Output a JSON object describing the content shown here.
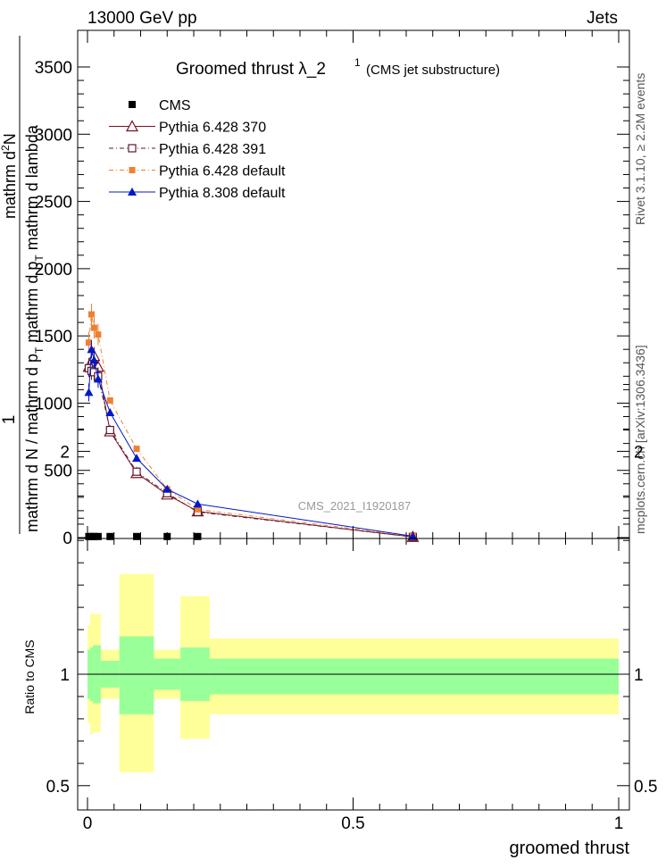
{
  "header": {
    "left": "13000 GeV pp",
    "right": "Jets"
  },
  "title": {
    "main": "Groomed thrust  λ_2",
    "superscript": "1",
    "sub": "(CMS jet substructure)"
  },
  "side_labels": {
    "rivet": "Rivet 3.1.10, ≥ 2.2M events",
    "mcplots": "mcplots.cern.ch [arXiv:1306.3436]"
  },
  "watermark": "CMS_2021_I1920187",
  "colors": {
    "cms": "#000000",
    "p370": "#7a1020",
    "p391": "#5a1a2a",
    "p6def": "#f07f30",
    "p8def": "#0018c8",
    "band_inner": "#99ff99",
    "band_outer": "#ffff99"
  },
  "chart_data": [
    {
      "type": "line",
      "ylabel_fraction": "1",
      "ylabel_num": "mathrm d",
      "ylabel_num_sup": "2",
      "ylabel_num_rest": "N",
      "ylabel_den": "mathrm d N / mathrm d p",
      "ylabel_den_sub": "T",
      "ylabel_den_rest": " mathrm d p",
      "ylabel_den_sub2": "T",
      "ylabel_den_end": " mathrm d lambda",
      "ylim": [
        0,
        3500
      ],
      "yticks": [
        {
          "v": 0,
          "label": "0"
        },
        {
          "v": 500,
          "label": "500"
        },
        {
          "v": 1000,
          "label": "1000"
        },
        {
          "v": 1500,
          "label": "1500"
        },
        {
          "v": 2000,
          "label": "2000"
        },
        {
          "v": 2500,
          "label": "2500"
        },
        {
          "v": 3000,
          "label": "3000"
        },
        {
          "v": 3500,
          "label": "3500"
        }
      ],
      "xlim": [
        0,
        1
      ],
      "legend_position": "top-left",
      "series": [
        {
          "name": "CMS",
          "style": "cms",
          "x": [
            0.0025,
            0.0075,
            0.0125,
            0.02,
            0.0425,
            0.0925,
            0.15,
            0.2075,
            0.6125
          ],
          "y": [
            8,
            8,
            8,
            8,
            8,
            8,
            8,
            8,
            8
          ]
        },
        {
          "name": "Pythia 6.428 370",
          "style": "p370",
          "x": [
            0.0025,
            0.0075,
            0.0125,
            0.02,
            0.0425,
            0.0925,
            0.15,
            0.2075,
            0.6125
          ],
          "y": [
            1270,
            1310,
            1350,
            1270,
            790,
            480,
            320,
            195,
            5
          ]
        },
        {
          "name": "Pythia 6.428 391",
          "style": "p391",
          "x": [
            0.0025,
            0.0075,
            0.0125,
            0.02,
            0.0425,
            0.0925,
            0.15,
            0.2075,
            0.6125
          ],
          "y": [
            1260,
            1240,
            1230,
            1200,
            800,
            490,
            330,
            190,
            5
          ]
        },
        {
          "name": "Pythia 6.428 default",
          "style": "p6def",
          "x": [
            0.0025,
            0.0075,
            0.0125,
            0.02,
            0.0425,
            0.0925,
            0.15,
            0.2075,
            0.6125
          ],
          "y": [
            1450,
            1660,
            1560,
            1510,
            1020,
            660,
            360,
            210,
            10
          ]
        },
        {
          "name": "Pythia 8.308 default",
          "style": "p8def",
          "x": [
            0.0025,
            0.0075,
            0.0125,
            0.02,
            0.0425,
            0.0925,
            0.15,
            0.2075,
            0.6125
          ],
          "y": [
            1080,
            1400,
            1320,
            1180,
            930,
            590,
            360,
            250,
            10
          ]
        }
      ]
    },
    {
      "type": "area",
      "ylabel": "Ratio to CMS",
      "xlabel": "groomed thrust",
      "ylim": [
        0.35,
        2.35
      ],
      "yticks": [
        {
          "v": 0.5,
          "label": "0.5"
        },
        {
          "v": 1,
          "label": "1"
        },
        {
          "v": 2,
          "label": "2"
        }
      ],
      "xticks": [
        {
          "v": 0,
          "label": "0"
        },
        {
          "v": 0.5,
          "label": "0.5"
        },
        {
          "v": 1,
          "label": "1"
        }
      ],
      "bands": [
        {
          "x0": 0.0,
          "x1": 0.005,
          "inner": [
            0.89,
            1.11
          ],
          "outer": [
            0.78,
            1.22
          ]
        },
        {
          "x0": 0.005,
          "x1": 0.01,
          "inner": [
            0.88,
            1.12
          ],
          "outer": [
            0.73,
            1.27
          ]
        },
        {
          "x0": 0.01,
          "x1": 0.025,
          "inner": [
            0.87,
            1.13
          ],
          "outer": [
            0.74,
            1.27
          ]
        },
        {
          "x0": 0.025,
          "x1": 0.06,
          "inner": [
            0.94,
            1.06
          ],
          "outer": [
            0.89,
            1.11
          ]
        },
        {
          "x0": 0.06,
          "x1": 0.125,
          "inner": [
            0.82,
            1.17
          ],
          "outer": [
            0.56,
            1.45
          ]
        },
        {
          "x0": 0.125,
          "x1": 0.175,
          "inner": [
            0.93,
            1.07
          ],
          "outer": [
            0.89,
            1.11
          ]
        },
        {
          "x0": 0.175,
          "x1": 0.23,
          "inner": [
            0.88,
            1.12
          ],
          "outer": [
            0.71,
            1.35
          ]
        },
        {
          "x0": 0.23,
          "x1": 1.0,
          "inner": [
            0.91,
            1.07
          ],
          "outer": [
            0.82,
            1.16
          ]
        }
      ]
    }
  ]
}
